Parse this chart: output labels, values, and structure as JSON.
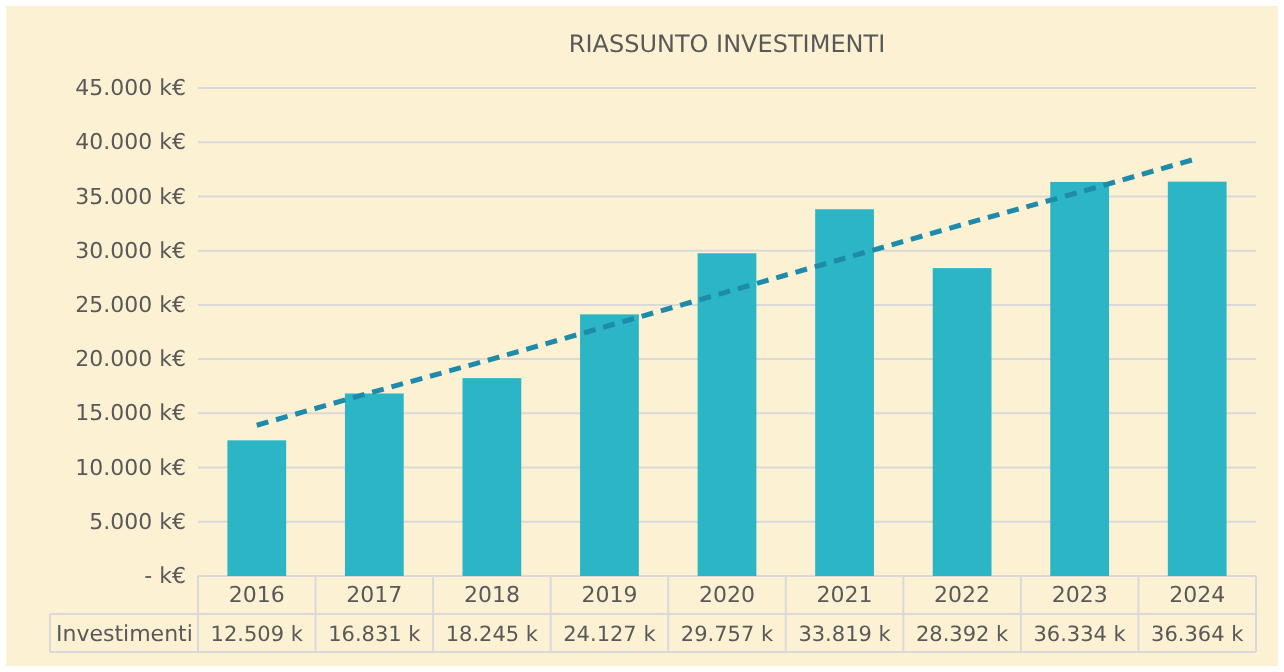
{
  "chart_data": {
    "type": "bar",
    "title": "RIASSUNTO INVESTIMENTI",
    "categories": [
      "2016",
      "2017",
      "2018",
      "2019",
      "2020",
      "2021",
      "2022",
      "2023",
      "2024"
    ],
    "series": [
      {
        "name": "Investimenti",
        "color": "#2bb5c5",
        "values": [
          12509,
          16831,
          18245,
          24127,
          29757,
          33819,
          28392,
          36334,
          36364
        ],
        "value_labels": [
          "12.509 k",
          "16.831 k",
          "18.245 k",
          "24.127 k",
          "29.757 k",
          "33.819 k",
          "28.392 k",
          "36.334 k",
          "36.364 k"
        ]
      },
      {
        "type": "line",
        "values": [
          13900,
          17000,
          20000,
          23100,
          26200,
          29300,
          32400,
          35400,
          38500
        ],
        "color": "#1e8bab",
        "line_style": "dashed",
        "marker": "none"
      }
    ],
    "ylim": [
      0,
      45000
    ],
    "yticks": [
      {
        "value": 0,
        "label": "- k€"
      },
      {
        "value": 5000,
        "label": "5.000 k€"
      },
      {
        "value": 10000,
        "label": "10.000 k€"
      },
      {
        "value": 15000,
        "label": "15.000 k€"
      },
      {
        "value": 20000,
        "label": "20.000 k€"
      },
      {
        "value": 25000,
        "label": "25.000 k€"
      },
      {
        "value": 30000,
        "label": "30.000 k€"
      },
      {
        "value": 35000,
        "label": "35.000 k€"
      },
      {
        "value": 40000,
        "label": "40.000 k€"
      },
      {
        "value": 45000,
        "label": "45.000 k€"
      }
    ],
    "grid": "y"
  }
}
